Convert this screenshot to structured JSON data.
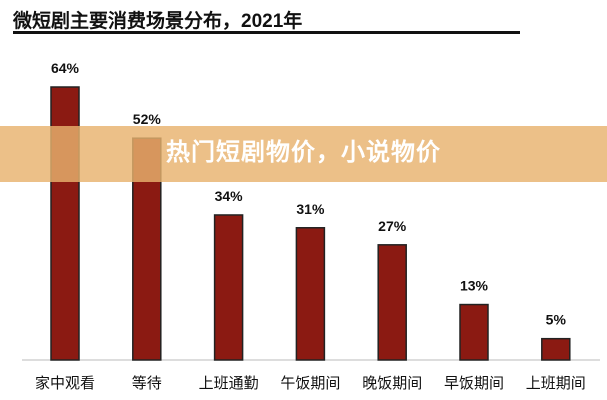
{
  "chart_data": {
    "type": "bar",
    "title": "微短剧主要消费场景分布，2021年",
    "categories": [
      "家中观看",
      "等待",
      "上班通勤",
      "午饭期间",
      "晚饭期间",
      "早饭期间",
      "上班期间"
    ],
    "values": [
      64,
      52,
      34,
      31,
      27,
      13,
      5
    ],
    "value_labels": [
      "64%",
      "52%",
      "34%",
      "31%",
      "27%",
      "13%",
      "5%"
    ],
    "xlabel": "",
    "ylabel": "",
    "ylim": [
      0,
      70
    ],
    "grid": false,
    "bar_color": "#8b1a12"
  },
  "overlay": {
    "text": "热门短剧物价，小说物价"
  }
}
